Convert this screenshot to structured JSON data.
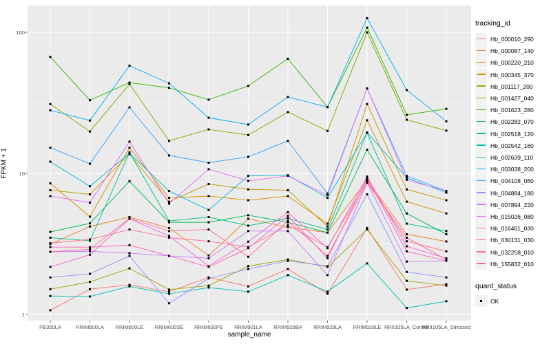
{
  "chart_data": {
    "type": "line",
    "title": "",
    "xlabel": "sample_name",
    "ylabel": "FPKM + 1",
    "y_scale": "log10",
    "y_ticks": [
      1,
      10,
      100
    ],
    "y_minor_ticks": [
      3.1623,
      31.623
    ],
    "ylim": [
      0.9,
      157
    ],
    "grid": "on",
    "legend_position": "right",
    "point_shape": "filled-black-square",
    "categories": [
      "PB350LA",
      "RRIM600LA",
      "RRIM600LE",
      "RRIM600SE",
      "RRIM600PE",
      "RRIM901LA",
      "RRIM928BA",
      "RRIM928LA",
      "RRIM928LE",
      "RRII105LA_Control",
      "RRII105LA_Stressed"
    ],
    "series": [
      {
        "name": "Hb_000010_290",
        "color": "#F8766D",
        "values": [
          1.07,
          1.51,
          1.62,
          1.45,
          1.83,
          1.58,
          2.1,
          1.4,
          4.1,
          1.5,
          1.64
        ]
      },
      {
        "name": "Hb_000087_140",
        "color": "#EA8331",
        "values": [
          3.15,
          4.2,
          4.9,
          4.1,
          2.62,
          4.76,
          4.15,
          3.8,
          9.0,
          3.7,
          3.29
        ]
      },
      {
        "name": "Hb_000220_210",
        "color": "#D89000",
        "values": [
          8.5,
          4.93,
          15.2,
          6.7,
          6.9,
          6.45,
          6.9,
          4.4,
          23.8,
          6.3,
          5.2
        ]
      },
      {
        "name": "Hb_000345_370",
        "color": "#C09B00",
        "values": [
          7.6,
          7.1,
          13.7,
          6.3,
          8.4,
          7.7,
          7.6,
          4.2,
          31.0,
          7.7,
          6.45
        ]
      },
      {
        "name": "Hb_001117_200",
        "color": "#A3A500",
        "values": [
          1.51,
          1.7,
          2.12,
          1.5,
          1.6,
          2.2,
          2.45,
          2.17,
          4.0,
          1.73,
          1.6
        ]
      },
      {
        "name": "Hb_001427_040",
        "color": "#7CAE00",
        "values": [
          31.0,
          19.8,
          43.0,
          17.0,
          20.5,
          18.7,
          27.2,
          20.0,
          100.0,
          24.0,
          20.1
        ]
      },
      {
        "name": "Hb_001623_280",
        "color": "#39B600",
        "values": [
          67.0,
          33.0,
          44.0,
          40.4,
          33.3,
          41.7,
          65.0,
          29.5,
          108.0,
          26.0,
          28.7
        ]
      },
      {
        "name": "Hb_002282_070",
        "color": "#00BB4E",
        "values": [
          3.85,
          4.42,
          8.8,
          4.5,
          4.5,
          5.05,
          4.5,
          3.8,
          14.7,
          5.2,
          3.7
        ]
      },
      {
        "name": "Hb_002518_120",
        "color": "#00C087",
        "values": [
          3.5,
          3.33,
          14.1,
          4.6,
          4.9,
          4.26,
          4.8,
          4.0,
          19.4,
          4.4,
          3.9
        ]
      },
      {
        "name": "Hb_002542_160",
        "color": "#00C0B2",
        "values": [
          1.35,
          1.34,
          1.58,
          1.4,
          1.55,
          1.45,
          1.9,
          1.45,
          2.3,
          1.11,
          1.24
        ]
      },
      {
        "name": "Hb_002639_110",
        "color": "#00BCD8",
        "values": [
          12.1,
          8.1,
          13.9,
          7.5,
          5.5,
          9.6,
          9.7,
          6.7,
          19.5,
          9.3,
          7.3
        ]
      },
      {
        "name": "Hb_003038_200",
        "color": "#00B0F6",
        "values": [
          28.0,
          23.7,
          58.0,
          43.5,
          24.8,
          22.2,
          34.8,
          29.5,
          126.0,
          39.0,
          23.4
        ]
      },
      {
        "name": "Hb_004108_060",
        "color": "#35A2FF",
        "values": [
          15.2,
          11.7,
          29.4,
          13.4,
          11.9,
          13.1,
          17.0,
          7.2,
          40.0,
          9.6,
          7.5
        ]
      },
      {
        "name": "Hb_004884_180",
        "color": "#9590FF",
        "values": [
          1.83,
          1.94,
          2.6,
          1.2,
          1.8,
          2.1,
          2.4,
          2.2,
          7.1,
          2.0,
          1.83
        ]
      },
      {
        "name": "Hb_007894_220",
        "color": "#C77CFF",
        "values": [
          2.78,
          2.8,
          2.72,
          2.6,
          2.5,
          3.9,
          3.9,
          1.9,
          8.6,
          2.37,
          2.4
        ]
      },
      {
        "name": "Hb_015026_080",
        "color": "#E76BF3",
        "values": [
          6.9,
          6.2,
          16.8,
          6.1,
          10.7,
          8.85,
          9.6,
          7.0,
          40.0,
          9.0,
          7.5
        ]
      },
      {
        "name": "Hb_016461_030",
        "color": "#FA62DB",
        "values": [
          2.17,
          2.65,
          4.76,
          3.6,
          2.2,
          3.28,
          5.3,
          2.95,
          9.5,
          3.04,
          2.5
        ]
      },
      {
        "name": "Hb_030131_030",
        "color": "#FF62BC",
        "values": [
          3.0,
          3.0,
          3.1,
          2.6,
          2.17,
          2.95,
          5.0,
          2.5,
          9.3,
          2.8,
          2.4
        ]
      },
      {
        "name": "Hb_032258_010",
        "color": "#FF6A98",
        "values": [
          2.78,
          2.9,
          4.8,
          3.9,
          4.0,
          2.56,
          4.6,
          2.6,
          8.6,
          3.5,
          2.45
        ]
      },
      {
        "name": "Hb_155832_010",
        "color": "#FF6C92",
        "values": [
          3.2,
          3.4,
          4.0,
          3.5,
          3.3,
          3.0,
          4.3,
          3.0,
          8.8,
          3.3,
          2.8
        ]
      }
    ]
  },
  "legend": {
    "color_title": "tracking_id",
    "shape_title": "quant_status",
    "shape_items": [
      {
        "label": "OK"
      }
    ]
  },
  "colors": {
    "plot_bg": "#FFFFFF",
    "panel_bg": "#EBEBEB",
    "grid": "#FFFFFF",
    "axis_text": "#4D4D4D",
    "text": "#000000",
    "legend_key_bg": "#F2F2F2",
    "point": "#000000",
    "tick_mark": "#333333"
  }
}
